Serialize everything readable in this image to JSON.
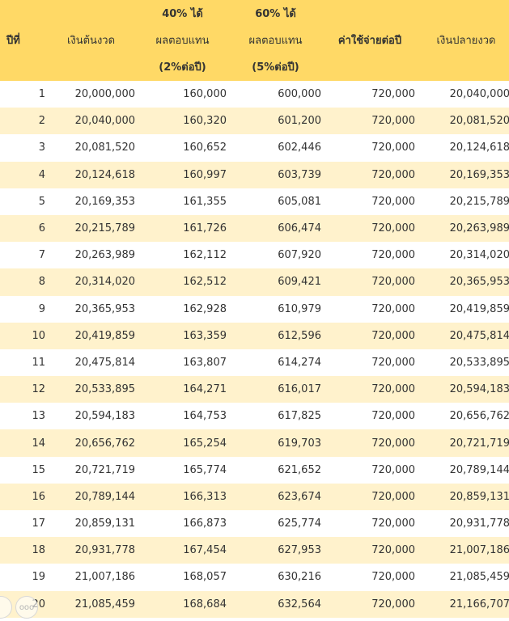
{
  "header": {
    "col_year": "ปีที่",
    "col_start": "เงินต้นงวด",
    "col_40_line1": "40% ได้",
    "col_40_line2": "ผลตอบแทน",
    "col_40_line3": "(2%ต่อปี)",
    "col_60_line1": "60% ได้",
    "col_60_line2": "ผลตอบแทน",
    "col_60_line3": "(5%ต่อปี)",
    "col_expense": "ค่าใช้จ่ายต่อปี",
    "col_end": "เงินปลายงวด"
  },
  "rows": [
    [
      "1",
      "20,000,000",
      "160,000",
      "600,000",
      "720,000",
      "20,040,000"
    ],
    [
      "2",
      "20,040,000",
      "160,320",
      "601,200",
      "720,000",
      "20,081,520"
    ],
    [
      "3",
      "20,081,520",
      "160,652",
      "602,446",
      "720,000",
      "20,124,618"
    ],
    [
      "4",
      "20,124,618",
      "160,997",
      "603,739",
      "720,000",
      "20,169,353"
    ],
    [
      "5",
      "20,169,353",
      "161,355",
      "605,081",
      "720,000",
      "20,215,789"
    ],
    [
      "6",
      "20,215,789",
      "161,726",
      "606,474",
      "720,000",
      "20,263,989"
    ],
    [
      "7",
      "20,263,989",
      "162,112",
      "607,920",
      "720,000",
      "20,314,020"
    ],
    [
      "8",
      "20,314,020",
      "162,512",
      "609,421",
      "720,000",
      "20,365,953"
    ],
    [
      "9",
      "20,365,953",
      "162,928",
      "610,979",
      "720,000",
      "20,419,859"
    ],
    [
      "10",
      "20,419,859",
      "163,359",
      "612,596",
      "720,000",
      "20,475,814"
    ],
    [
      "11",
      "20,475,814",
      "163,807",
      "614,274",
      "720,000",
      "20,533,895"
    ],
    [
      "12",
      "20,533,895",
      "164,271",
      "616,017",
      "720,000",
      "20,594,183"
    ],
    [
      "13",
      "20,594,183",
      "164,753",
      "617,825",
      "720,000",
      "20,656,762"
    ],
    [
      "14",
      "20,656,762",
      "165,254",
      "619,703",
      "720,000",
      "20,721,719"
    ],
    [
      "15",
      "20,721,719",
      "165,774",
      "621,652",
      "720,000",
      "20,789,144"
    ],
    [
      "16",
      "20,789,144",
      "166,313",
      "623,674",
      "720,000",
      "20,859,131"
    ],
    [
      "17",
      "20,859,131",
      "166,873",
      "625,774",
      "720,000",
      "20,931,778"
    ],
    [
      "18",
      "20,931,778",
      "167,454",
      "627,953",
      "720,000",
      "21,007,186"
    ],
    [
      "19",
      "21,007,186",
      "168,057",
      "630,216",
      "720,000",
      "21,085,459"
    ],
    [
      "20",
      "21,085,459",
      "168,684",
      "632,564",
      "720,000",
      "21,166,707"
    ]
  ],
  "overlay": {
    "more_icon_glyph": "ooo"
  },
  "colors": {
    "header_bg": "#ffd966",
    "stripe_bg": "#fff2cc",
    "text": "#333333"
  }
}
